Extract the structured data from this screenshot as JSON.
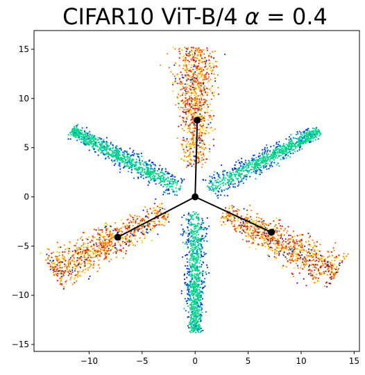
{
  "chart_data": {
    "type": "scatter",
    "title": "CIFAR10 ViT-B/4 α = 0.4",
    "title_parts": {
      "prefix": "CIFAR10 ViT-B/4 ",
      "symbol": "α",
      "suffix": " = 0.4"
    },
    "xlabel": "",
    "ylabel": "",
    "xlim": [
      -15.2,
      15.5
    ],
    "ylim": [
      -15.7,
      16.9
    ],
    "xticks": [
      -10,
      -5,
      0,
      5,
      10,
      15
    ],
    "yticks": [
      -15,
      -10,
      -5,
      0,
      5,
      10,
      15
    ],
    "grid": false,
    "legend": "none",
    "colormap": "jet",
    "colors": {
      "blue": "#0033cc",
      "teal": "#00d48a",
      "yellow": "#ffd400",
      "orange": "#ff8a00",
      "red": "#e01800",
      "vector": "#000000"
    },
    "clusters": [
      {
        "group": "inner-arm",
        "dir": [
          0.0,
          -1.0
        ],
        "from": 1.5,
        "to": 13.8,
        "spread": 1.3
      },
      {
        "group": "inner-arm",
        "dir": [
          0.866,
          0.5
        ],
        "from": 1.5,
        "to": 13.5,
        "spread": 1.3
      },
      {
        "group": "inner-arm",
        "dir": [
          -0.866,
          0.5
        ],
        "from": 1.5,
        "to": 13.5,
        "spread": 1.3
      },
      {
        "group": "outer-arm",
        "dir": [
          0.0,
          1.0
        ],
        "from": 3.0,
        "to": 15.2,
        "spread": 2.4
      },
      {
        "group": "outer-arm",
        "dir": [
          0.866,
          -0.5
        ],
        "from": 3.0,
        "to": 15.5,
        "spread": 2.4
      },
      {
        "group": "outer-arm",
        "dir": [
          -0.866,
          -0.5
        ],
        "from": 3.0,
        "to": 15.5,
        "spread": 2.4
      }
    ],
    "vectors": [
      {
        "from": [
          0,
          0
        ],
        "to": [
          0.2,
          7.8
        ]
      },
      {
        "from": [
          0,
          0
        ],
        "to": [
          7.2,
          -3.6
        ]
      },
      {
        "from": [
          0,
          0
        ],
        "to": [
          -7.3,
          -4.1
        ]
      }
    ],
    "origin_marker": [
      0,
      0
    ]
  }
}
